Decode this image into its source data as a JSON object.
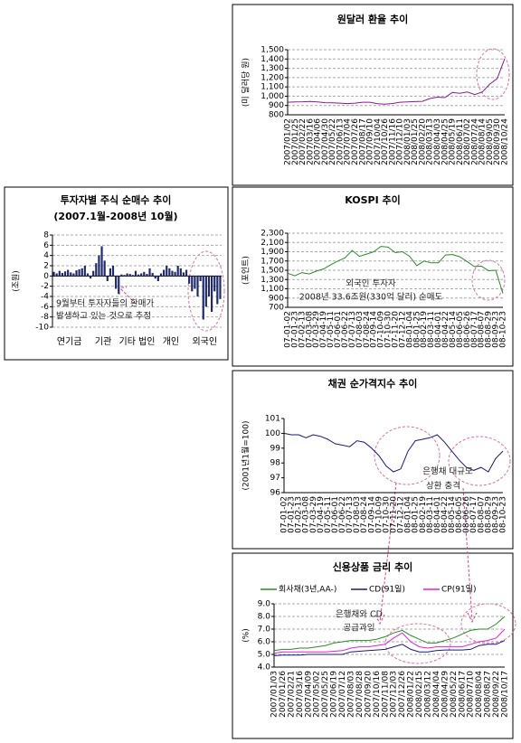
{
  "chart_data": [
    {
      "type": "line",
      "title": "원달러 환율 추이",
      "ylabel": "(미 달러당 원)",
      "categories": [
        "2007/01/02",
        "2007/01/25",
        "2007/02/22",
        "2007/03/16",
        "2007/04/06",
        "2007/04/30",
        "2007/05/22",
        "2007/06/13",
        "2007/07/04",
        "2007/07/26",
        "2007/08/17",
        "2007/09/10",
        "2007/10/04",
        "2007/10/26",
        "2007/11/16",
        "2007/12/10",
        "2008/01/03",
        "2008/01/25",
        "2008/02/20",
        "2008/03/13",
        "2008/04/03",
        "2008/04/25",
        "2008/05/19",
        "2008/06/11",
        "2008/07/02",
        "2008/07/24",
        "2008/08/14",
        "2008/09/05",
        "2008/09/30",
        "2008/10/24"
      ],
      "series": [
        {
          "color": "#8b1a8b",
          "values": [
            935,
            939,
            940,
            944,
            938,
            930,
            928,
            925,
            921,
            925,
            935,
            935,
            920,
            915,
            922,
            935,
            938,
            942,
            945,
            975,
            990,
            985,
            1040,
            1030,
            1045,
            1018,
            1045,
            1130,
            1190,
            1405
          ]
        }
      ],
      "ylim": [
        800,
        1500
      ],
      "yticks": [
        800,
        900,
        {
          "value": 1000,
          "label": "1,000"
        },
        {
          "value": 1100,
          "label": "1,100"
        },
        {
          "value": 1200,
          "label": "1,200"
        },
        {
          "value": 1300,
          "label": "1,300"
        },
        {
          "value": 1400,
          "label": "1,400"
        },
        {
          "value": 1500,
          "label": "1,500"
        }
      ],
      "grid": true
    },
    {
      "type": "bar",
      "title": "투자자별 주식 순매수 추이",
      "subtitle": "(2007.1월-2008년 10월)",
      "ylabel": "(조원)",
      "categories": [
        "연기금",
        "기관",
        "기타 법인",
        "개인",
        "외국인"
      ],
      "color": "#1f2a6b",
      "values": [
        [
          0.8,
          0.5,
          1.0,
          0.6,
          0.9,
          1.2,
          0.7,
          0.5,
          1.1,
          1.3,
          1.5,
          2.0
        ],
        [
          0.5,
          -0.5,
          1.0,
          2.5,
          4.0,
          5.8,
          3.0,
          -1.0,
          1.5,
          2.0,
          -2.5,
          -3.5
        ],
        [
          0.3,
          0.2,
          0.5,
          0.4,
          0.2,
          1.0,
          0.3,
          0.5,
          0.8,
          0.4,
          1.5,
          0.6
        ],
        [
          -0.5,
          -1.0,
          0.5,
          1.2,
          2.0,
          1.5,
          1.0,
          0.8,
          2.0,
          1.5,
          0.7,
          1.2
        ],
        [
          -1.5,
          -3.0,
          -2.5,
          -4.0,
          -1.0,
          -8.5,
          -6.0,
          -4.0,
          -7.0,
          -3.0,
          -5.5,
          -4.5
        ]
      ],
      "annotations": [
        "9월부터 투자자들의 환매가",
        "발생하고 있는 것으로 추정"
      ],
      "ylim": [
        -10,
        8
      ],
      "yticks": [
        -10,
        -8,
        -6,
        -4,
        -2,
        0,
        2,
        4,
        6,
        8
      ],
      "grid": true
    },
    {
      "type": "line",
      "title": "KOSPI 추이",
      "ylabel": "(포인트)",
      "categories": [
        "07-01-02",
        "07-01-23",
        "07-02-13",
        "07-03-08",
        "07-03-29",
        "07-04-19",
        "07-05-11",
        "07-06-01",
        "07-06-22",
        "07-07-13",
        "07-08-03",
        "07-08-24",
        "07-09-14",
        "07-10-09",
        "07-10-30",
        "07-11-20",
        "07-12-12",
        "08-01-04",
        "08-01-25",
        "08-02-19",
        "08-03-11",
        "08-04-01",
        "08-04-22",
        "08-05-14",
        "08-06-05",
        "08-06-26",
        "08-07-17",
        "08-08-07",
        "08-08-29",
        "08-09-23",
        "08-10-23"
      ],
      "series": [
        {
          "color": "#2a8a2a",
          "values": [
            1435,
            1380,
            1450,
            1420,
            1480,
            1530,
            1620,
            1700,
            1770,
            1930,
            1800,
            1850,
            1900,
            2015,
            2000,
            1880,
            1900,
            1800,
            1600,
            1700,
            1660,
            1660,
            1830,
            1840,
            1790,
            1690,
            1580,
            1590,
            1490,
            1500,
            1000
          ]
        }
      ],
      "annotations": [
        "외국인 투자자",
        "2008년 33.6조원(330억 달러) 순매도"
      ],
      "ylim": [
        700,
        2300
      ],
      "yticks": [
        700,
        900,
        {
          "value": 1100,
          "label": "1,100"
        },
        {
          "value": 1300,
          "label": "1,300"
        },
        {
          "value": 1500,
          "label": "1,500"
        },
        {
          "value": 1700,
          "label": "1,700"
        },
        {
          "value": 1900,
          "label": "1,900"
        },
        {
          "value": 2100,
          "label": "2,100"
        },
        {
          "value": 2300,
          "label": "2,300"
        }
      ],
      "grid": true
    },
    {
      "type": "line",
      "title": "채권 순가격지수 추이",
      "ylabel": "(2001년1월=100)",
      "categories": [
        "07-01-02",
        "07-01-23",
        "07-02-13",
        "07-03-08",
        "07-03-29",
        "07-04-19",
        "07-05-11",
        "07-06-01",
        "07-06-22",
        "07-07-13",
        "07-08-03",
        "07-08-24",
        "07-09-14",
        "07-10-09",
        "07-10-30",
        "07-11-20",
        "07-12-12",
        "08-01-04",
        "08-01-25",
        "08-02-19",
        "08-03-11",
        "08-04-01",
        "08-04-22",
        "08-05-14",
        "08-06-05",
        "08-06-26",
        "08-07-17",
        "08-08-07",
        "08-08-29",
        "08-09-23",
        "08-10-23"
      ],
      "series": [
        {
          "color": "#1a1a7a",
          "values": [
            100,
            99.9,
            99.9,
            99.7,
            99.9,
            99.8,
            99.6,
            99.3,
            99.2,
            99.1,
            99.5,
            99.4,
            99.0,
            98.5,
            97.8,
            97.4,
            97.6,
            98.8,
            99.5,
            99.6,
            99.7,
            99.9,
            99.4,
            98.8,
            98.2,
            97.7,
            97.5,
            97.7,
            97.4,
            98.3,
            98.8
          ]
        }
      ],
      "annotations": [
        "은행채 대규모",
        "상환 충격"
      ],
      "ylim": [
        96,
        101
      ],
      "yticks": [
        96,
        97,
        98,
        99,
        100,
        101
      ],
      "grid": false
    },
    {
      "type": "line",
      "title": "신용상품 금리 추이",
      "ylabel": "(%)",
      "categories": [
        "2007/01/03",
        "2007/01/26",
        "2007/02/21",
        "2007/03/16",
        "2007/04/09",
        "2007/05/02",
        "2007/05/25",
        "2007/06/19",
        "2007/07/12",
        "2007/08/03",
        "2007/08/28",
        "2007/09/20",
        "2007/10/16",
        "2007/11/08",
        "2007/12/03",
        "2007/12/26",
        "2008/01/22",
        "2008/02/15",
        "2008/03/12",
        "2008/04/04",
        "2008/04/29",
        "2008/05/22",
        "2008/06/17",
        "2008/07/10",
        "2008/08/04",
        "2008/08/27",
        "2008/09/22",
        "2008/10/17"
      ],
      "series": [
        {
          "name": "회사채(3년,AA-)",
          "color": "#2a8a2a",
          "values": [
            5.3,
            5.4,
            5.4,
            5.5,
            5.5,
            5.6,
            5.7,
            5.9,
            6.0,
            6.1,
            6.1,
            6.1,
            6.2,
            6.4,
            6.7,
            6.9,
            6.5,
            6.2,
            5.9,
            5.9,
            6.1,
            6.3,
            6.6,
            6.9,
            7.0,
            7.0,
            7.4,
            8.0
          ]
        },
        {
          "name": "CD(91일)",
          "color": "#1a1a7a",
          "values": [
            4.9,
            4.95,
            4.95,
            4.95,
            5.0,
            5.0,
            5.0,
            5.0,
            5.0,
            5.2,
            5.25,
            5.3,
            5.35,
            5.4,
            5.6,
            5.8,
            5.4,
            5.2,
            5.2,
            5.3,
            5.35,
            5.35,
            5.35,
            5.4,
            5.7,
            5.8,
            5.8,
            6.1
          ]
        },
        {
          "name": "CP(91일)",
          "color": "#e020e0",
          "values": [
            5.1,
            5.2,
            5.2,
            5.2,
            5.2,
            5.2,
            5.2,
            5.25,
            5.3,
            5.5,
            5.6,
            5.6,
            5.7,
            5.8,
            6.3,
            6.7,
            6.0,
            5.6,
            5.5,
            5.6,
            5.6,
            5.6,
            5.6,
            5.8,
            6.0,
            6.1,
            6.3,
            7.0
          ]
        }
      ],
      "annotations": [
        "은행채와 CD",
        "공급과잉"
      ],
      "ylim": [
        4,
        9
      ],
      "yticks": [
        {
          "value": 4,
          "label": "4.0"
        },
        {
          "value": 5,
          "label": "5.0"
        },
        {
          "value": 6,
          "label": "6.0"
        },
        {
          "value": 7,
          "label": "7.0"
        },
        {
          "value": 8,
          "label": "8.0"
        },
        {
          "value": 9,
          "label": "9.0"
        }
      ],
      "grid": true
    }
  ]
}
